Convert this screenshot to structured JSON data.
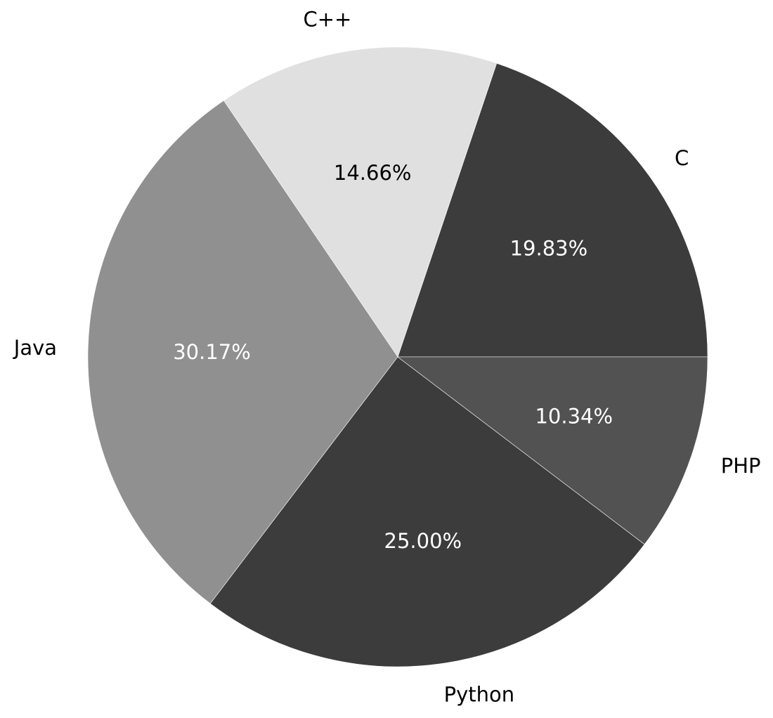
{
  "chart_data": {
    "type": "pie",
    "categories": [
      "C",
      "C++",
      "Java",
      "Python",
      "PHP"
    ],
    "values": [
      19.83,
      14.66,
      30.17,
      25.0,
      10.34
    ],
    "value_labels": [
      "19.83%",
      "14.66%",
      "30.17%",
      "25.00%",
      "10.34%"
    ],
    "colors": [
      "#3c3c3c",
      "#e0e0e0",
      "#909090",
      "#3c3c3c",
      "#525252"
    ],
    "label_colors": [
      "#ffffff",
      "#000000",
      "#ffffff",
      "#ffffff",
      "#ffffff"
    ],
    "start_angle_deg": 0,
    "direction": "counterclockwise",
    "legend": "none",
    "title": ""
  }
}
